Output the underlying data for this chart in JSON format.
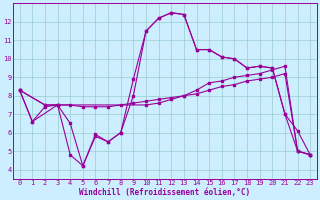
{
  "xlabel": "Windchill (Refroidissement éolien,°C)",
  "bg_color": "#cceeff",
  "line_color": "#990099",
  "grid_color": "#99cccc",
  "xlim_min": -0.5,
  "xlim_max": 23.5,
  "ylim_min": 3.5,
  "ylim_max": 13.0,
  "xticks": [
    0,
    1,
    2,
    3,
    4,
    5,
    6,
    7,
    8,
    9,
    10,
    11,
    12,
    13,
    14,
    15,
    16,
    17,
    18,
    19,
    20,
    21,
    22,
    23
  ],
  "yticks": [
    4,
    5,
    6,
    7,
    8,
    9,
    10,
    11,
    12
  ],
  "line1_x": [
    0,
    1,
    2,
    3,
    4,
    5,
    6,
    7,
    8,
    9,
    10,
    11,
    12,
    13,
    14,
    15,
    16,
    17,
    18,
    19,
    20,
    21,
    22,
    23
  ],
  "line1_y": [
    8.3,
    6.6,
    7.4,
    7.5,
    6.5,
    4.2,
    5.8,
    5.5,
    6.0,
    8.9,
    11.5,
    12.2,
    12.5,
    12.4,
    10.5,
    10.5,
    10.1,
    10.0,
    9.5,
    9.6,
    9.5,
    7.0,
    6.1,
    4.8
  ],
  "line2_x": [
    0,
    1,
    3,
    4,
    5,
    6,
    7,
    8,
    9,
    10,
    11,
    12,
    13,
    14,
    15,
    16,
    17,
    18,
    19,
    20,
    21,
    22,
    23
  ],
  "line2_y": [
    8.3,
    6.6,
    7.5,
    4.8,
    4.2,
    5.9,
    5.5,
    6.0,
    8.0,
    11.5,
    12.2,
    12.5,
    12.4,
    10.5,
    10.5,
    10.1,
    10.0,
    9.5,
    9.6,
    9.5,
    7.0,
    5.0,
    4.8
  ],
  "line3_x": [
    0,
    2,
    3,
    10,
    11,
    12,
    13,
    14,
    15,
    16,
    17,
    18,
    19,
    20,
    21,
    22,
    23
  ],
  "line3_y": [
    8.3,
    7.5,
    7.5,
    7.5,
    7.6,
    7.8,
    8.0,
    8.3,
    8.7,
    8.8,
    9.0,
    9.1,
    9.2,
    9.4,
    9.6,
    5.0,
    4.8
  ],
  "line4_x": [
    0,
    2,
    3,
    4,
    5,
    6,
    7,
    8,
    9,
    10,
    11,
    12,
    13,
    14,
    15,
    16,
    17,
    18,
    19,
    20,
    21,
    22,
    23
  ],
  "line4_y": [
    8.3,
    7.5,
    7.5,
    7.5,
    7.4,
    7.4,
    7.4,
    7.5,
    7.6,
    7.7,
    7.8,
    7.9,
    8.0,
    8.1,
    8.3,
    8.5,
    8.6,
    8.8,
    8.9,
    9.0,
    9.2,
    5.0,
    4.8
  ]
}
